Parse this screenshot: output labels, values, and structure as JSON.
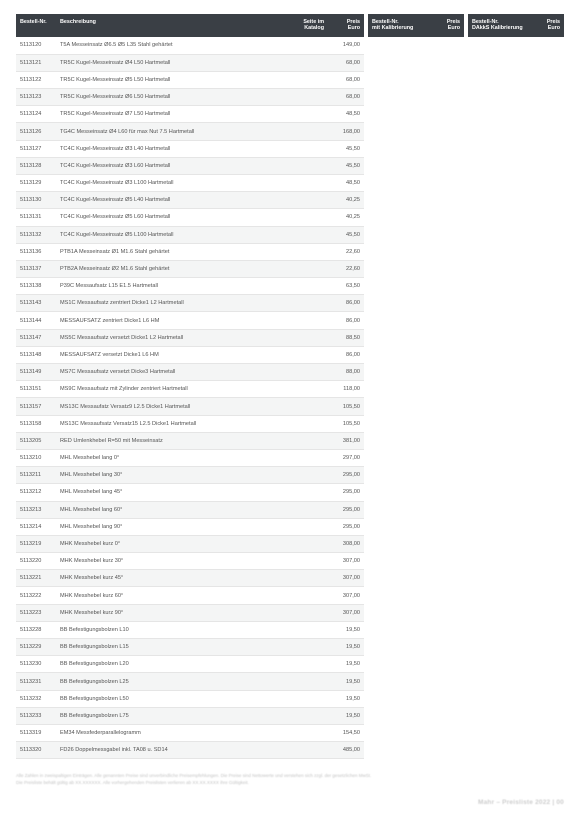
{
  "main": {
    "headers": {
      "order": "Bestell-Nr.",
      "desc": "Beschreibung",
      "page": "Seite im\nKatalog",
      "price": "Preis\nEuro"
    },
    "rows": [
      {
        "o": "5113120",
        "d": "T5A Messeinsatz Ø6.5 Ø5 L35 Stahl gehärtet",
        "p": "",
        "e": "149,00"
      },
      {
        "o": "5113121",
        "d": "TR5C Kugel-Messeinsatz Ø4 L50 Hartmetall",
        "p": "",
        "e": "68,00"
      },
      {
        "o": "5113122",
        "d": "TR5C Kugel-Messeinsatz Ø5 L50 Hartmetall",
        "p": "",
        "e": "68,00"
      },
      {
        "o": "5113123",
        "d": "TR5C Kugel-Messeinsatz Ø6 L50 Hartmetall",
        "p": "",
        "e": "68,00"
      },
      {
        "o": "5113124",
        "d": "TR5C Kugel-Messeinsatz Ø7 L50 Hartmetall",
        "p": "",
        "e": "48,50"
      },
      {
        "o": "5113126",
        "d": "TG4C Messeinsatz Ø4 L60 für max Nut 7.5 Hartmetall",
        "p": "",
        "e": "168,00"
      },
      {
        "o": "5113127",
        "d": "TC4C Kugel-Messeinsatz Ø3 L40 Hartmetall",
        "p": "",
        "e": "45,50"
      },
      {
        "o": "5113128",
        "d": "TC4C Kugel-Messeinsatz Ø3 L60 Hartmetall",
        "p": "",
        "e": "45,50"
      },
      {
        "o": "5113129",
        "d": "TC4C Kugel-Messeinsatz Ø3 L100 Hartmetall",
        "p": "",
        "e": "48,50"
      },
      {
        "o": "5113130",
        "d": "TC4C Kugel-Messeinsatz Ø5 L40 Hartmetall",
        "p": "",
        "e": "40,25"
      },
      {
        "o": "5113131",
        "d": "TC4C Kugel-Messeinsatz Ø5 L60 Hartmetall",
        "p": "",
        "e": "40,25"
      },
      {
        "o": "5113132",
        "d": "TC4C Kugel-Messeinsatz Ø5 L100 Hartmetall",
        "p": "",
        "e": "45,50"
      },
      {
        "o": "5113136",
        "d": "PTB1A Messeinsatz Ø1 M1.6 Stahl gehärtet",
        "p": "",
        "e": "22,60"
      },
      {
        "o": "5113137",
        "d": "PTB2A Messeinsatz Ø2 M1.6 Stahl gehärtet",
        "p": "",
        "e": "22,60"
      },
      {
        "o": "5113138",
        "d": "P39C Messaufsatz L15 E1.5 Hartmetall",
        "p": "",
        "e": "63,50"
      },
      {
        "o": "5113143",
        "d": "MS1C Messaufsatz zentriert Dicke1 L2 Hartmetall",
        "p": "",
        "e": "86,00"
      },
      {
        "o": "5113144",
        "d": "MESSAUFSATZ zentriert Dicke1 L6 HM",
        "p": "",
        "e": "86,00"
      },
      {
        "o": "5113147",
        "d": "MS5C Messaufsatz versetzt Dicke1 L2 Hartmetall",
        "p": "",
        "e": "88,50"
      },
      {
        "o": "5113148",
        "d": "MESSAUFSATZ versetzt Dicke1 L6 HM",
        "p": "",
        "e": "86,00"
      },
      {
        "o": "5113149",
        "d": "MS7C Messaufsatz versetzt Dicke3 Hartmetall",
        "p": "",
        "e": "88,00"
      },
      {
        "o": "5113151",
        "d": "MS9C Messaufsatz mit Zylinder zentriert Hartmetall",
        "p": "",
        "e": "118,00"
      },
      {
        "o": "5113157",
        "d": "MS13C Messaufatz Versatz9 L2.5 Dicke1 Hartmetall",
        "p": "",
        "e": "105,50"
      },
      {
        "o": "5113158",
        "d": "MS13C Messaufsatz Versatz15 L2.5 Dicke1 Hartmetall",
        "p": "",
        "e": "105,50"
      },
      {
        "o": "5113205",
        "d": "RED Umlenkhebel R=50 mit Messeinsatz",
        "p": "",
        "e": "381,00"
      },
      {
        "o": "5113210",
        "d": "MHL Messhebel lang 0°",
        "p": "",
        "e": "297,00"
      },
      {
        "o": "5113211",
        "d": "MHL Messhebel lang 30°",
        "p": "",
        "e": "295,00"
      },
      {
        "o": "5113212",
        "d": "MHL Messhebel lang 45°",
        "p": "",
        "e": "295,00"
      },
      {
        "o": "5113213",
        "d": "MHL Messhebel lang 60°",
        "p": "",
        "e": "295,00"
      },
      {
        "o": "5113214",
        "d": "MHL Messhebel lang 90°",
        "p": "",
        "e": "295,00"
      },
      {
        "o": "5113219",
        "d": "MHK Messhebel kurz 0°",
        "p": "",
        "e": "308,00"
      },
      {
        "o": "5113220",
        "d": "MHK Messhebel kurz 30°",
        "p": "",
        "e": "307,00"
      },
      {
        "o": "5113221",
        "d": "MHK Messhebel kurz 45°",
        "p": "",
        "e": "307,00"
      },
      {
        "o": "5113222",
        "d": "MHK Messhebel kurz 60°",
        "p": "",
        "e": "307,00"
      },
      {
        "o": "5113223",
        "d": "MHK Messhebel kurz 90°",
        "p": "",
        "e": "307,00"
      },
      {
        "o": "5113228",
        "d": "BB Befestigungsbolzen L10",
        "p": "",
        "e": "19,50"
      },
      {
        "o": "5113229",
        "d": "BB Befestigungsbolzen L15",
        "p": "",
        "e": "19,50"
      },
      {
        "o": "5113230",
        "d": "BB Befestigungsbolzen L20",
        "p": "",
        "e": "19,50"
      },
      {
        "o": "5113231",
        "d": "BB Befestigungsbolzen L25",
        "p": "",
        "e": "19,50"
      },
      {
        "o": "5113232",
        "d": "BB Befestigungsbolzen L50",
        "p": "",
        "e": "19,50"
      },
      {
        "o": "5113233",
        "d": "BB Befestigungsbolzen L75",
        "p": "",
        "e": "19,50"
      },
      {
        "o": "5113319",
        "d": "EM34 Messfederparallelogramm",
        "p": "",
        "e": "154,50"
      },
      {
        "o": "5113320",
        "d": "FD26 Doppelmessgabel inkl. TA08 u. SD14",
        "p": "",
        "e": "485,00"
      }
    ]
  },
  "side1": {
    "headers": {
      "order": "Bestell-Nr.\nmit Kalibrierung",
      "price": "Preis\nEuro"
    }
  },
  "side2": {
    "headers": {
      "order": "Bestell-Nr.\nDAkkS Kalibrierung",
      "price": "Preis\nEuro"
    }
  },
  "footnote": "Alle Zahlen in zweispaltigen Einträgen. Alle genannten Preise sind unverbindliche Preisempfehlungen. Die Preise sind Nettowerte und verstehen sich zzgl. der gesetzlichen MwSt.\nDie Preisliste behält gültig ab XX.XXXXXX. Alle vorhergehenden Preislisten verlieren ab XX.XX.XXXX ihre Gültigkeit.",
  "page_footer": "Mahr – Preisliste 2022 | 00",
  "style": {
    "header_bg": "#3a3f45",
    "header_fg": "#ffffff",
    "row_alt_bg": "#f4f5f5",
    "text_color": "#535353"
  }
}
